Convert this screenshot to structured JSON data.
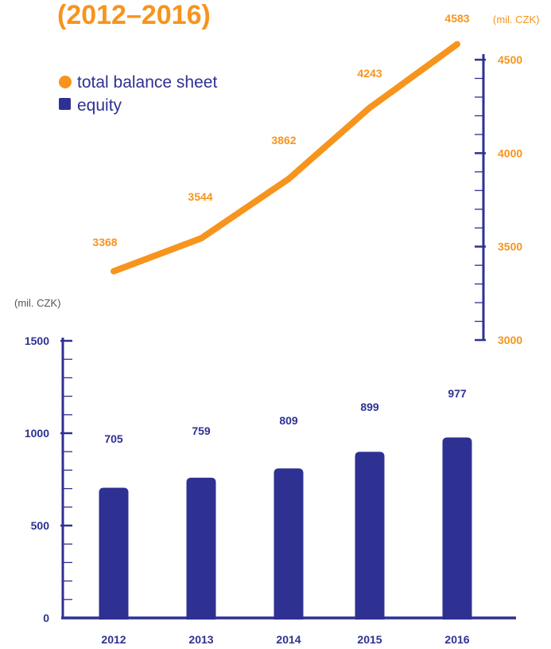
{
  "colors": {
    "orange": "#f7941d",
    "navy": "#2e3192",
    "unit_orange": "#f7941d",
    "unit_gray": "#555555"
  },
  "title": "(2012–2016)",
  "legend": [
    {
      "label": "total balance sheet",
      "marker": "circle",
      "color": "#f7941d"
    },
    {
      "label": "equity",
      "marker": "square",
      "color": "#2e3192"
    }
  ],
  "chart_data": [
    {
      "type": "line",
      "series": [
        {
          "name": "total balance sheet",
          "values": [
            3368,
            3544,
            3862,
            4243,
            4583
          ]
        }
      ],
      "categories": [
        "2012",
        "2013",
        "2014",
        "2015",
        "2016"
      ],
      "ylim": [
        3000,
        4583
      ],
      "yticks": [
        3000,
        3500,
        4000,
        4500
      ],
      "ylabel": "(mil. CZK)",
      "axis_side": "right",
      "grid": false
    },
    {
      "type": "bar",
      "series": [
        {
          "name": "equity",
          "values": [
            705,
            759,
            809,
            899,
            977
          ]
        }
      ],
      "categories": [
        "2012",
        "2013",
        "2014",
        "2015",
        "2016"
      ],
      "ylim": [
        0,
        1500
      ],
      "yticks": [
        0,
        500,
        1000,
        1500
      ],
      "ylabel": "(mil. CZK)",
      "axis_side": "left",
      "grid": false
    }
  ]
}
